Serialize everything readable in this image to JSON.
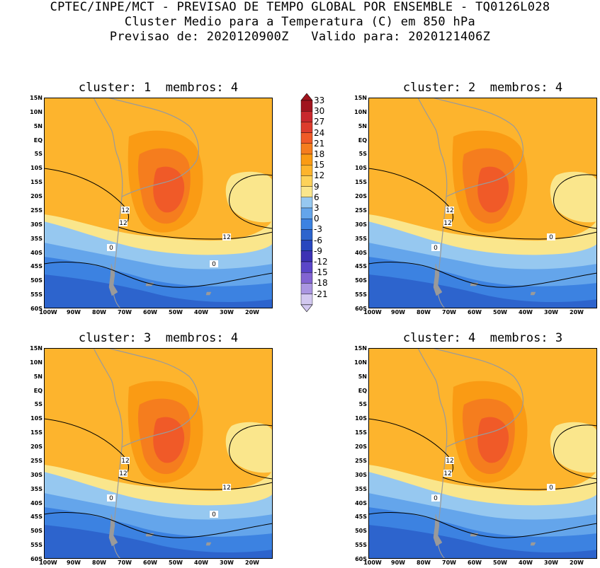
{
  "header": {
    "line1": "CPTEC/INPE/MCT - PREVISAO DE TEMPO GLOBAL POR ENSEMBLE - TQ0126L028",
    "line2": "Cluster Medio para a Temperatura (C) em 850 hPa",
    "line3": "Previsao de: 2020120900Z   Valido para: 2020121406Z"
  },
  "panels": [
    {
      "title": "cluster: 1  membros: 4",
      "contour_labels": [
        "12",
        "12",
        "12",
        "0",
        "0"
      ]
    },
    {
      "title": "cluster: 2  membros: 4",
      "contour_labels": [
        "12",
        "12",
        "0",
        "0"
      ]
    },
    {
      "title": "cluster: 3  membros: 4",
      "contour_labels": [
        "12",
        "12",
        "12",
        "0",
        "0"
      ]
    },
    {
      "title": "cluster: 4  membros: 3",
      "contour_labels": [
        "12",
        "12",
        "0",
        "0"
      ]
    }
  ],
  "lat_labels": [
    "15N",
    "10N",
    "5N",
    "EQ",
    "5S",
    "10S",
    "15S",
    "20S",
    "25S",
    "30S",
    "35S",
    "40S",
    "45S",
    "50S",
    "55S",
    "60S"
  ],
  "lon_labels": [
    "100W",
    "90W",
    "80W",
    "70W",
    "60W",
    "50W",
    "40W",
    "30W",
    "20W"
  ],
  "colorbar": {
    "labels": [
      "33",
      "30",
      "27",
      "24",
      "21",
      "18",
      "15",
      "12",
      "9",
      "6",
      "3",
      "0",
      "-3",
      "-6",
      "-9",
      "-12",
      "-15",
      "-18",
      "-21"
    ],
    "colors": [
      "#a0141e",
      "#c8282d",
      "#dc3c2d",
      "#f05a28",
      "#f57d1e",
      "#fa9b14",
      "#fdb42d",
      "#fdd25a",
      "#fae68c",
      "#96c8f0",
      "#64a5eb",
      "#3c82e1",
      "#2d64cd",
      "#2846be",
      "#3c32b4",
      "#5a46c8",
      "#8264d2",
      "#aa96e1",
      "#d2c8f0"
    ]
  }
}
